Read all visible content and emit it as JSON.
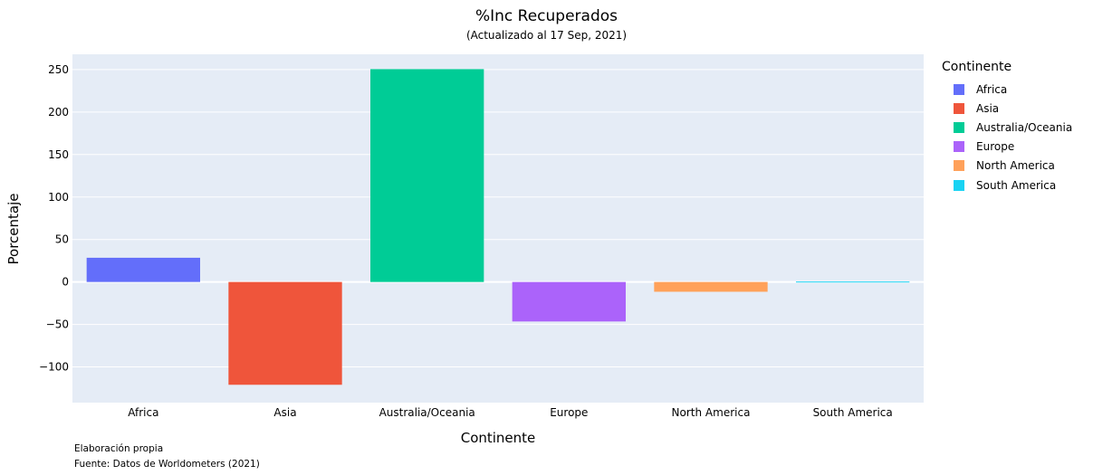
{
  "chart_data": {
    "type": "bar",
    "title": "%Inc Recuperados",
    "subtitle": "(Actualizado al 17 Sep, 2021)",
    "xlabel": "Continente",
    "ylabel": "Porcentaje",
    "categories": [
      "Africa",
      "Asia",
      "Australia/Oceania",
      "Europe",
      "North America",
      "South America"
    ],
    "values": [
      28.5,
      -121,
      250.5,
      -46.5,
      -11.5,
      0.5
    ],
    "colors": [
      "#636efa",
      "#ef553b",
      "#00cc96",
      "#ab63fa",
      "#ffa15a",
      "#19d3f3"
    ],
    "ylim": [
      -142,
      268
    ],
    "yticks": [
      -100,
      -50,
      0,
      50,
      100,
      150,
      200,
      250
    ],
    "ytick_labels": [
      "−100",
      "−50",
      "0",
      "50",
      "100",
      "150",
      "200",
      "250"
    ],
    "grid": true,
    "legend_title": "Continente",
    "legend_position": "right",
    "plot_bgcolor": "#e5ecf6"
  },
  "notes": {
    "line1": "Elaboración propia",
    "line2": "Fuente: Datos de Worldometers (2021)"
  }
}
